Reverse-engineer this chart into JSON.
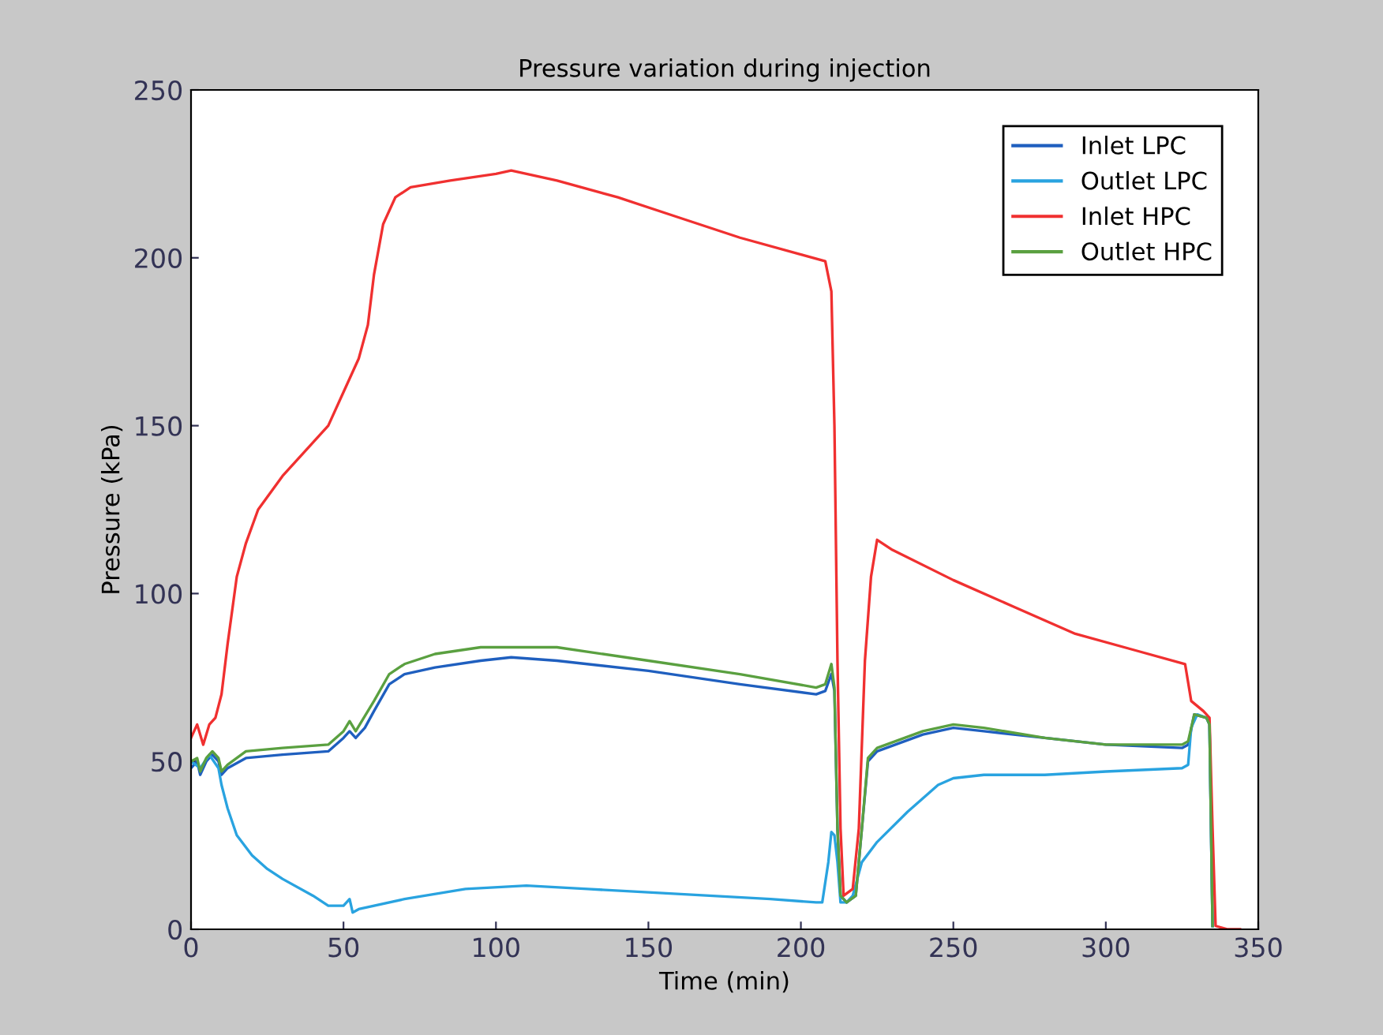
{
  "chart_data": {
    "type": "line",
    "title": "Pressure variation during injection",
    "xlabel": "Time (min)",
    "ylabel": "Pressure (kPa)",
    "xlim": [
      0,
      350
    ],
    "ylim": [
      0,
      250
    ],
    "xticks": [
      0,
      50,
      100,
      150,
      200,
      250,
      300,
      350
    ],
    "yticks": [
      0,
      50,
      100,
      150,
      200,
      250
    ],
    "grid": false,
    "legend": "top right",
    "series": [
      {
        "name": "Inlet LPC",
        "color": "#1f5fbf",
        "x": [
          0,
          2,
          3,
          5,
          7,
          9,
          10,
          12,
          18,
          30,
          45,
          50,
          52,
          54,
          57,
          60,
          65,
          70,
          80,
          95,
          105,
          120,
          150,
          180,
          205,
          208,
          210,
          211,
          212,
          213,
          215,
          218,
          220,
          222,
          225,
          240,
          250,
          260,
          280,
          300,
          325,
          327,
          329,
          333,
          334,
          335
        ],
        "values": [
          48,
          50,
          46,
          50,
          52,
          50,
          46,
          48,
          51,
          52,
          53,
          57,
          59,
          57,
          60,
          65,
          73,
          76,
          78,
          80,
          81,
          80,
          77,
          73,
          70,
          71,
          76,
          71,
          30,
          10,
          8,
          10,
          30,
          50,
          53,
          58,
          60,
          59,
          57,
          55,
          54,
          55,
          64,
          63,
          61,
          1
        ]
      },
      {
        "name": "Outlet LPC",
        "color": "#29a3e0",
        "x": [
          0,
          3,
          6,
          9,
          10,
          12,
          15,
          20,
          25,
          30,
          40,
          45,
          50,
          52,
          53,
          55,
          70,
          90,
          110,
          130,
          150,
          170,
          190,
          205,
          207,
          209,
          210,
          211,
          212,
          213,
          215,
          217,
          220,
          225,
          235,
          245,
          250,
          260,
          280,
          300,
          325,
          327,
          328,
          330,
          333,
          334,
          335
        ],
        "values": [
          50,
          48,
          52,
          48,
          43,
          36,
          28,
          22,
          18,
          15,
          10,
          7,
          7,
          9,
          5,
          6,
          9,
          12,
          13,
          12,
          11,
          10,
          9,
          8,
          8,
          20,
          29,
          28,
          20,
          8,
          8,
          10,
          20,
          26,
          35,
          43,
          45,
          46,
          46,
          47,
          48,
          49,
          60,
          64,
          63,
          61,
          1
        ]
      },
      {
        "name": "Inlet HPC",
        "color": "#f03030",
        "x": [
          0,
          2,
          4,
          6,
          8,
          10,
          12,
          15,
          18,
          22,
          30,
          40,
          45,
          50,
          55,
          58,
          60,
          63,
          67,
          72,
          85,
          100,
          105,
          120,
          140,
          160,
          180,
          200,
          208,
          210,
          211,
          212,
          213,
          214,
          217,
          219,
          221,
          223,
          225,
          230,
          250,
          270,
          290,
          310,
          326,
          328,
          332,
          334,
          335,
          336,
          340,
          344
        ],
        "values": [
          57,
          61,
          55,
          61,
          63,
          70,
          85,
          105,
          115,
          125,
          135,
          145,
          150,
          160,
          170,
          180,
          195,
          210,
          218,
          221,
          223,
          225,
          226,
          223,
          218,
          212,
          206,
          201,
          199,
          190,
          150,
          80,
          30,
          10,
          12,
          30,
          80,
          105,
          116,
          113,
          104,
          96,
          88,
          83,
          79,
          68,
          65,
          63,
          30,
          1,
          0,
          0
        ]
      },
      {
        "name": "Outlet HPC",
        "color": "#5aa040",
        "x": [
          0,
          2,
          3,
          5,
          7,
          9,
          10,
          12,
          18,
          30,
          45,
          50,
          52,
          54,
          60,
          65,
          70,
          80,
          95,
          105,
          120,
          150,
          180,
          205,
          208,
          210,
          211,
          212,
          213,
          215,
          218,
          220,
          222,
          225,
          240,
          250,
          260,
          280,
          300,
          325,
          327,
          329,
          333,
          334,
          335
        ],
        "values": [
          50,
          51,
          47,
          51,
          53,
          51,
          47,
          49,
          53,
          54,
          55,
          59,
          62,
          59,
          68,
          76,
          79,
          82,
          84,
          84,
          84,
          80,
          76,
          72,
          73,
          79,
          72,
          30,
          10,
          8,
          10,
          30,
          51,
          54,
          59,
          61,
          60,
          57,
          55,
          55,
          56,
          64,
          63,
          61,
          1
        ]
      }
    ]
  }
}
